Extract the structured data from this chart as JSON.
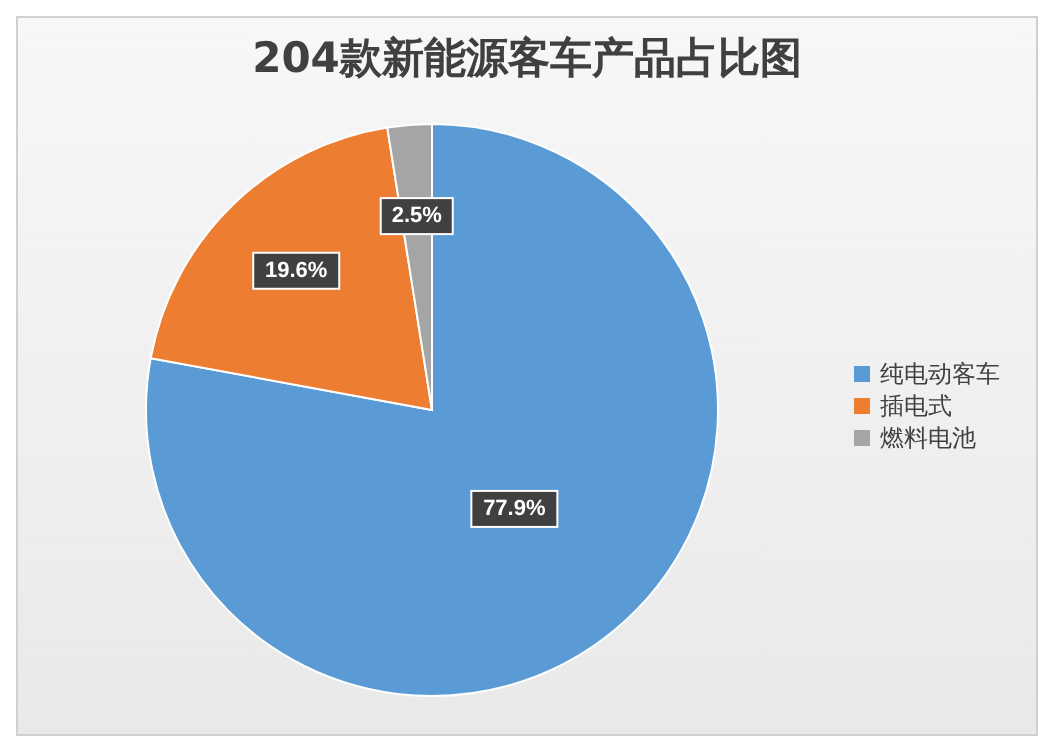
{
  "chart_data": {
    "type": "pie",
    "title": "204款新能源客车产品占比图",
    "categories": [
      "纯电动客车",
      "插电式",
      "燃料电池"
    ],
    "values": [
      77.9,
      19.6,
      2.5
    ],
    "colors": [
      "#5b9bd5",
      "#ed7d31",
      "#a5a5a5"
    ],
    "value_labels": [
      "77.9%",
      "19.6%",
      "2.5%"
    ],
    "legend": "right"
  }
}
